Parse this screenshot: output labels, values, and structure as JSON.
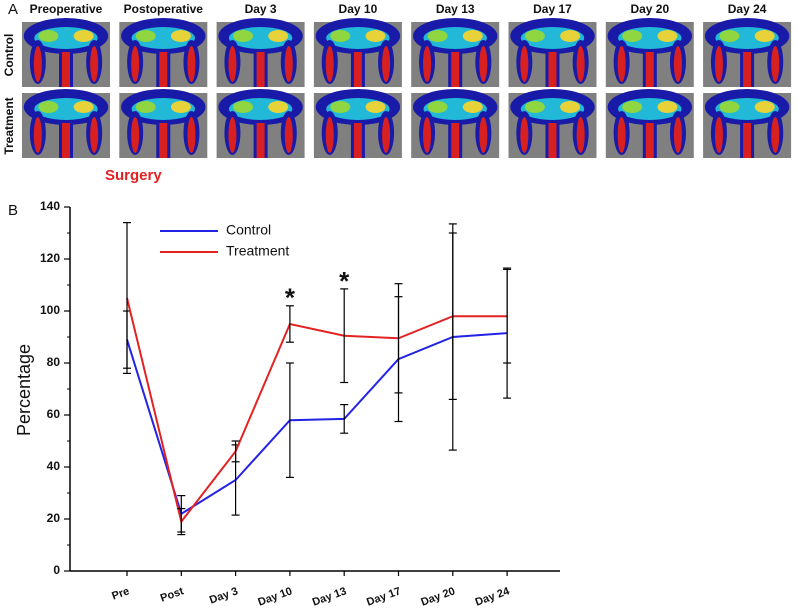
{
  "panel_a": {
    "label": "A",
    "columns": [
      "Preoperative",
      "Postoperative",
      "Day 3",
      "Day 10",
      "Day 13",
      "Day 17",
      "Day 20",
      "Day 24"
    ],
    "rows": [
      "Control",
      "Treatment"
    ],
    "note": "Surgery"
  },
  "chart_data": {
    "type": "line",
    "panel_label": "B",
    "categories": [
      "Pre",
      "Post",
      "Day 3",
      "Day 10",
      "Day 13",
      "Day 17",
      "Day 20",
      "Day 24"
    ],
    "series": [
      {
        "name": "Control",
        "color": "#2323e6",
        "values": [
          89,
          22,
          35,
          58,
          58.5,
          81.5,
          90,
          91.5
        ],
        "errors": [
          11,
          7,
          13.5,
          22,
          5.5,
          24,
          43.5,
          25
        ]
      },
      {
        "name": "Treatment",
        "color": "#e32222",
        "values": [
          105,
          19,
          46,
          95,
          90.5,
          89.5,
          98,
          98
        ],
        "errors": [
          29,
          5,
          4,
          7,
          18,
          21,
          32,
          18
        ]
      }
    ],
    "y_label": "Percentage",
    "ylim": [
      0,
      140
    ],
    "yticks": [
      0,
      20,
      40,
      60,
      80,
      100,
      120,
      140
    ],
    "annotations": [
      {
        "text": "*",
        "category": "Day 10"
      },
      {
        "text": "*",
        "category": "Day 13"
      }
    ],
    "legend": "upper-left"
  }
}
